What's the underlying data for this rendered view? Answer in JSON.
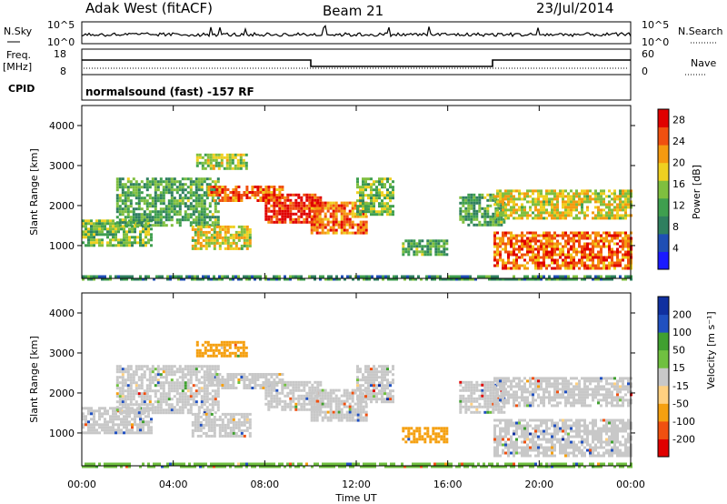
{
  "header": {
    "station": "Adak West (fitACF)",
    "beam": "Beam 21",
    "date": "23/Jul/2014"
  },
  "panels": {
    "nsky": {
      "label": "N.Sky",
      "ticks": [
        "10^5",
        "10^0"
      ]
    },
    "nsearch": {
      "label": "N.Search"
    },
    "freq": {
      "label_top": "Freq.",
      "label_unit": "[MHz]",
      "ticks": [
        "18",
        "8"
      ]
    },
    "nave": {
      "label": "Nave",
      "ticks": [
        "60",
        "0"
      ]
    },
    "cpid": {
      "label": "CPID",
      "text": "normalsound (fast) -157 RF"
    }
  },
  "colors": {
    "power_scale": [
      "#1a1aff",
      "#1f4fb4",
      "#2f7f5f",
      "#3f9f4f",
      "#7fbf3f",
      "#efd020",
      "#f59a10",
      "#f05010",
      "#e00000"
    ],
    "velocity_scale": [
      "#e00000",
      "#f05010",
      "#f5a010",
      "#ffd080",
      "#c8c8c8",
      "#70c040",
      "#40a030",
      "#2050c0",
      "#1030a0"
    ],
    "ground_scatter": "#c8c8c8"
  },
  "chart_data": [
    {
      "type": "heatmap",
      "title": "Power",
      "ylabel": "Slant Range [km]",
      "xlabel": "Time UT",
      "x_ticks": [
        "00:00",
        "04:00",
        "08:00",
        "12:00",
        "16:00",
        "20:00",
        "00:00"
      ],
      "xlim_hours": [
        0,
        24
      ],
      "y_ticks": [
        1000,
        2000,
        3000,
        4000
      ],
      "ylim": [
        180,
        4500
      ],
      "colorbar": {
        "label": "Power [dB]",
        "ticks": [
          4,
          8,
          12,
          16,
          20,
          24,
          28
        ],
        "range": [
          0,
          30
        ]
      },
      "regions": [
        {
          "t0": 0.0,
          "t1": 3.0,
          "r0": 1000,
          "r1": 1650,
          "level": 14
        },
        {
          "t0": 1.5,
          "t1": 6.0,
          "r0": 1500,
          "r1": 2700,
          "level": 12
        },
        {
          "t0": 4.8,
          "t1": 7.4,
          "r0": 900,
          "r1": 1500,
          "level": 18
        },
        {
          "t0": 5.5,
          "t1": 8.8,
          "r0": 2100,
          "r1": 2500,
          "level": 24
        },
        {
          "t0": 8.0,
          "t1": 10.4,
          "r0": 1600,
          "r1": 2300,
          "level": 27
        },
        {
          "t0": 10.0,
          "t1": 12.5,
          "r0": 1300,
          "r1": 2100,
          "level": 24
        },
        {
          "t0": 12.0,
          "t1": 13.6,
          "r0": 1800,
          "r1": 2700,
          "level": 14
        },
        {
          "t0": 14.0,
          "t1": 16.0,
          "r0": 750,
          "r1": 1150,
          "level": 12
        },
        {
          "t0": 16.5,
          "t1": 18.5,
          "r0": 1500,
          "r1": 2300,
          "level": 12
        },
        {
          "t0": 18.0,
          "t1": 24.0,
          "r0": 450,
          "r1": 1350,
          "level": 24
        },
        {
          "t0": 18.0,
          "t1": 24.0,
          "r0": 1700,
          "r1": 2400,
          "level": 18
        },
        {
          "t0": 5.0,
          "t1": 7.2,
          "r0": 2950,
          "r1": 3300,
          "level": 16
        },
        {
          "t0": 0.0,
          "t1": 24.0,
          "r0": 180,
          "r1": 260,
          "level": 10
        }
      ]
    },
    {
      "type": "heatmap",
      "title": "Velocity",
      "ylabel": "Slant Range [km]",
      "xlabel": "Time UT",
      "x_ticks": [
        "00:00",
        "04:00",
        "08:00",
        "12:00",
        "16:00",
        "20:00",
        "00:00"
      ],
      "xlim_hours": [
        0,
        24
      ],
      "y_ticks": [
        1000,
        2000,
        3000,
        4000
      ],
      "ylim": [
        180,
        4500
      ],
      "colorbar": {
        "label": "Velocity [m s⁻¹]",
        "ticks": [
          "-200",
          "-100",
          "-50",
          "-15",
          "15",
          "50",
          "100",
          "200"
        ],
        "range": [
          -250,
          250
        ]
      },
      "regions": [
        {
          "t0": 0.0,
          "t1": 3.0,
          "r0": 1000,
          "r1": 1650,
          "level": 0
        },
        {
          "t0": 1.5,
          "t1": 6.0,
          "r0": 1500,
          "r1": 2700,
          "level": 0
        },
        {
          "t0": 4.8,
          "t1": 7.4,
          "r0": 900,
          "r1": 1500,
          "level": 0
        },
        {
          "t0": 5.5,
          "t1": 8.8,
          "r0": 2100,
          "r1": 2500,
          "level": 0
        },
        {
          "t0": 8.0,
          "t1": 10.4,
          "r0": 1600,
          "r1": 2300,
          "level": 0
        },
        {
          "t0": 10.0,
          "t1": 12.5,
          "r0": 1300,
          "r1": 2100,
          "level": 0
        },
        {
          "t0": 12.0,
          "t1": 13.6,
          "r0": 1800,
          "r1": 2700,
          "level": 0
        },
        {
          "t0": 14.0,
          "t1": 16.0,
          "r0": 750,
          "r1": 1150,
          "level": -60
        },
        {
          "t0": 16.5,
          "t1": 18.5,
          "r0": 1500,
          "r1": 2300,
          "level": 0
        },
        {
          "t0": 18.0,
          "t1": 24.0,
          "r0": 450,
          "r1": 1350,
          "level": 0
        },
        {
          "t0": 18.0,
          "t1": 24.0,
          "r0": 1700,
          "r1": 2400,
          "level": 0
        },
        {
          "t0": 5.0,
          "t1": 7.2,
          "r0": 2950,
          "r1": 3300,
          "level": -60
        },
        {
          "t0": 0.0,
          "t1": 24.0,
          "r0": 180,
          "r1": 260,
          "level": 40
        }
      ]
    }
  ]
}
